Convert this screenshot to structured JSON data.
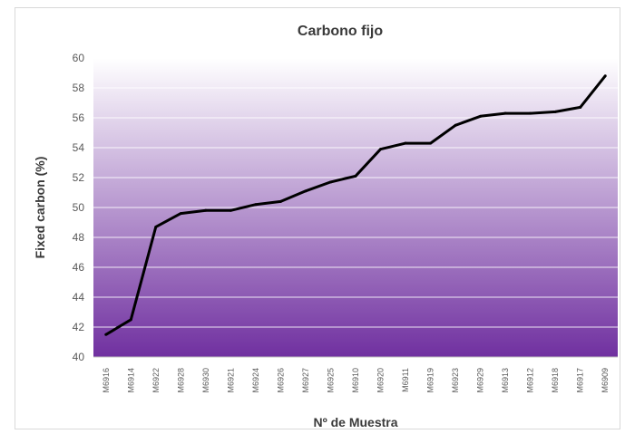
{
  "chart_data": {
    "type": "line",
    "title": "Carbono fijo",
    "xlabel": "Nº de Muestra",
    "ylabel": "Fixed carbon (%)",
    "ylim": [
      40,
      60
    ],
    "yticks": [
      40,
      42,
      44,
      46,
      48,
      50,
      52,
      54,
      56,
      58,
      60
    ],
    "grid": true,
    "legend": "none",
    "categories": [
      "M6916",
      "M6914",
      "M6922",
      "M6928",
      "M6930",
      "M6921",
      "M6924",
      "M6926",
      "M6927",
      "M6925",
      "M6910",
      "M6920",
      "M6911",
      "M6919",
      "M6923",
      "M6929",
      "M6913",
      "M6912",
      "M6918",
      "M6917",
      "M6909"
    ],
    "series": [
      {
        "values": [
          41.5,
          42.5,
          48.7,
          49.6,
          49.8,
          49.8,
          50.2,
          50.4,
          51.1,
          51.7,
          52.1,
          53.9,
          54.3,
          54.3,
          55.5,
          56.1,
          56.3,
          56.3,
          56.4,
          56.7,
          58.8
        ],
        "color": "#000000"
      }
    ],
    "background_gradient": [
      "#ffffff",
      "#7030a0"
    ]
  }
}
